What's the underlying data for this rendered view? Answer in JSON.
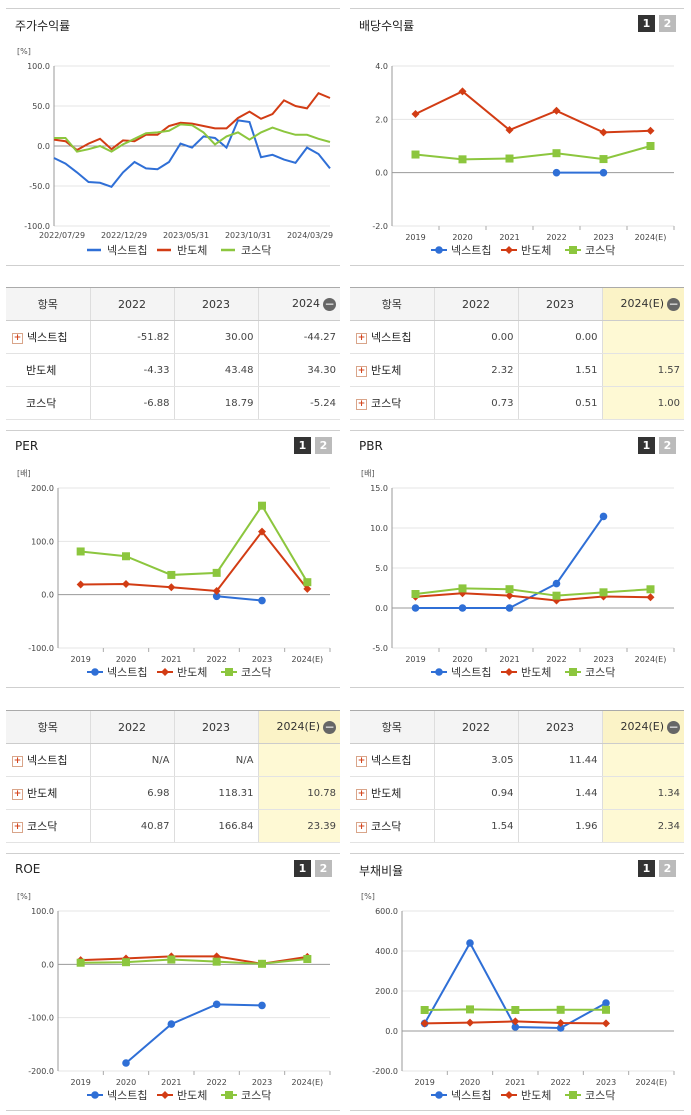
{
  "legend_names": [
    "넥스트칩",
    "반도체",
    "코스닥"
  ],
  "colors": {
    "s0": "#2f6fd6",
    "s1": "#d23c14",
    "s2": "#8cc63e"
  },
  "btn1": "1",
  "btn2": "2",
  "panels": {
    "stock": {
      "title": "주가수익률",
      "unit": "[%]"
    },
    "dividend": {
      "title": "배당수익률"
    },
    "per": {
      "title": "PER",
      "unit": "[배]"
    },
    "pbr": {
      "title": "PBR",
      "unit": "[배]"
    },
    "roe": {
      "title": "ROE",
      "unit": "[%]"
    },
    "debt": {
      "title": "부채비율",
      "unit": "[%]"
    }
  },
  "tables": {
    "stock": {
      "headers": [
        "항목",
        "2022",
        "2023",
        "2024"
      ],
      "rows": [
        {
          "name": "넥스트칩",
          "plus": true,
          "values": [
            "-51.82",
            "30.00",
            "-44.27"
          ]
        },
        {
          "name": "반도체",
          "plus": false,
          "values": [
            "-4.33",
            "43.48",
            "34.30"
          ]
        },
        {
          "name": "코스닥",
          "plus": false,
          "values": [
            "-6.88",
            "18.79",
            "-5.24"
          ]
        }
      ]
    },
    "dividend": {
      "headers": [
        "항목",
        "2022",
        "2023",
        "2024(E)"
      ],
      "rows": [
        {
          "name": "넥스트칩",
          "plus": true,
          "values": [
            "0.00",
            "0.00",
            ""
          ]
        },
        {
          "name": "반도체",
          "plus": true,
          "values": [
            "2.32",
            "1.51",
            "1.57"
          ]
        },
        {
          "name": "코스닥",
          "plus": true,
          "values": [
            "0.73",
            "0.51",
            "1.00"
          ]
        }
      ]
    },
    "per": {
      "headers": [
        "항목",
        "2022",
        "2023",
        "2024(E)"
      ],
      "rows": [
        {
          "name": "넥스트칩",
          "plus": true,
          "values": [
            "N/A",
            "N/A",
            ""
          ]
        },
        {
          "name": "반도체",
          "plus": true,
          "values": [
            "6.98",
            "118.31",
            "10.78"
          ]
        },
        {
          "name": "코스닥",
          "plus": true,
          "values": [
            "40.87",
            "166.84",
            "23.39"
          ]
        }
      ]
    },
    "pbr": {
      "headers": [
        "항목",
        "2022",
        "2023",
        "2024(E)"
      ],
      "rows": [
        {
          "name": "넥스트칩",
          "plus": true,
          "values": [
            "3.05",
            "11.44",
            ""
          ]
        },
        {
          "name": "반도체",
          "plus": true,
          "values": [
            "0.94",
            "1.44",
            "1.34"
          ]
        },
        {
          "name": "코스닥",
          "plus": true,
          "values": [
            "1.54",
            "1.96",
            "2.34"
          ]
        }
      ]
    }
  },
  "chart_data": [
    {
      "id": "stock",
      "type": "line",
      "x_ticks": [
        "2022/07/29",
        "2022/12/29",
        "2023/05/31",
        "2023/10/31",
        "2024/03/29"
      ],
      "ylim": [
        -100,
        100
      ],
      "yticks": [
        "100.0",
        "50.0",
        "0.0",
        "-50.0",
        "-100.0"
      ],
      "series": [
        {
          "name": "넥스트칩",
          "values": [
            -15,
            -22,
            -33,
            -45,
            -46,
            -51,
            -33,
            -20,
            -28,
            -29,
            -20,
            3,
            -2,
            12,
            10,
            -2,
            32,
            30,
            -14,
            -11,
            -17,
            -21,
            -2,
            -10,
            -28
          ]
        },
        {
          "name": "반도체",
          "values": [
            8,
            6,
            -5,
            3,
            9,
            -4,
            7,
            6,
            14,
            14,
            25,
            29,
            28,
            25,
            22,
            22,
            35,
            43,
            34,
            40,
            57,
            50,
            47,
            66,
            60
          ]
        },
        {
          "name": "코스닥",
          "values": [
            10,
            10,
            -7,
            -4,
            0,
            -7,
            2,
            9,
            16,
            17,
            19,
            27,
            26,
            17,
            2,
            12,
            17,
            8,
            17,
            23,
            18,
            14,
            14,
            9,
            5
          ]
        }
      ]
    },
    {
      "id": "dividend",
      "type": "line",
      "categories": [
        "2019",
        "2020",
        "2021",
        "2022",
        "2023",
        "2024(E)"
      ],
      "ylim": [
        -2,
        4
      ],
      "yticks": [
        "4.0",
        "2.0",
        "0.0",
        "-2.0"
      ],
      "series": [
        {
          "name": "넥스트칩",
          "values": [
            null,
            null,
            null,
            0.0,
            0.0,
            null
          ]
        },
        {
          "name": "반도체",
          "values": [
            2.2,
            3.05,
            1.6,
            2.32,
            1.51,
            1.57
          ]
        },
        {
          "name": "코스닥",
          "values": [
            0.68,
            0.5,
            0.53,
            0.73,
            0.51,
            1.0
          ]
        }
      ]
    },
    {
      "id": "per",
      "type": "line",
      "categories": [
        "2019",
        "2020",
        "2021",
        "2022",
        "2023",
        "2024(E)"
      ],
      "ylim": [
        -100,
        200
      ],
      "yticks": [
        "200.0",
        "100.0",
        "0.0",
        "-100.0"
      ],
      "series": [
        {
          "name": "넥스트칩",
          "values": [
            null,
            null,
            null,
            -3,
            -11,
            null
          ]
        },
        {
          "name": "반도체",
          "values": [
            19,
            20,
            14,
            6.98,
            118.31,
            10.78
          ]
        },
        {
          "name": "코스닥",
          "values": [
            81,
            72,
            37,
            40.87,
            166.84,
            23.39
          ]
        }
      ]
    },
    {
      "id": "pbr",
      "type": "line",
      "categories": [
        "2019",
        "2020",
        "2021",
        "2022",
        "2023",
        "2024(E)"
      ],
      "ylim": [
        -5,
        15
      ],
      "yticks": [
        "15.0",
        "10.0",
        "5.0",
        "0.0",
        "-5.0"
      ],
      "series": [
        {
          "name": "넥스트칩",
          "values": [
            0.0,
            0.0,
            0.0,
            3.05,
            11.44,
            null
          ]
        },
        {
          "name": "반도체",
          "values": [
            1.4,
            1.85,
            1.55,
            0.94,
            1.44,
            1.34
          ]
        },
        {
          "name": "코스닥",
          "values": [
            1.75,
            2.45,
            2.35,
            1.54,
            1.96,
            2.34
          ]
        }
      ]
    },
    {
      "id": "roe",
      "type": "line",
      "categories": [
        "2019",
        "2020",
        "2021",
        "2022",
        "2023",
        "2024(E)"
      ],
      "ylim": [
        -200,
        100
      ],
      "yticks": [
        "100.0",
        "0.0",
        "-100.0",
        "-200.0"
      ],
      "series": [
        {
          "name": "넥스트칩",
          "values": [
            null,
            -185,
            -112,
            -75,
            -77,
            null
          ]
        },
        {
          "name": "반도체",
          "values": [
            8,
            11,
            15,
            15,
            1,
            14
          ]
        },
        {
          "name": "코스닥",
          "values": [
            3,
            4,
            9,
            5,
            1,
            10
          ]
        }
      ]
    },
    {
      "id": "debt",
      "type": "line",
      "categories": [
        "2019",
        "2020",
        "2021",
        "2022",
        "2023",
        "2024(E)"
      ],
      "ylim": [
        -200,
        600
      ],
      "yticks": [
        "600.0",
        "400.0",
        "200.0",
        "0.0",
        "-200.0"
      ],
      "series": [
        {
          "name": "넥스트칩",
          "values": [
            38,
            440,
            20,
            15,
            140,
            null
          ]
        },
        {
          "name": "반도체",
          "values": [
            38,
            42,
            48,
            40,
            38,
            null
          ]
        },
        {
          "name": "코스닥",
          "values": [
            105,
            108,
            105,
            106,
            106,
            null
          ]
        }
      ]
    }
  ]
}
